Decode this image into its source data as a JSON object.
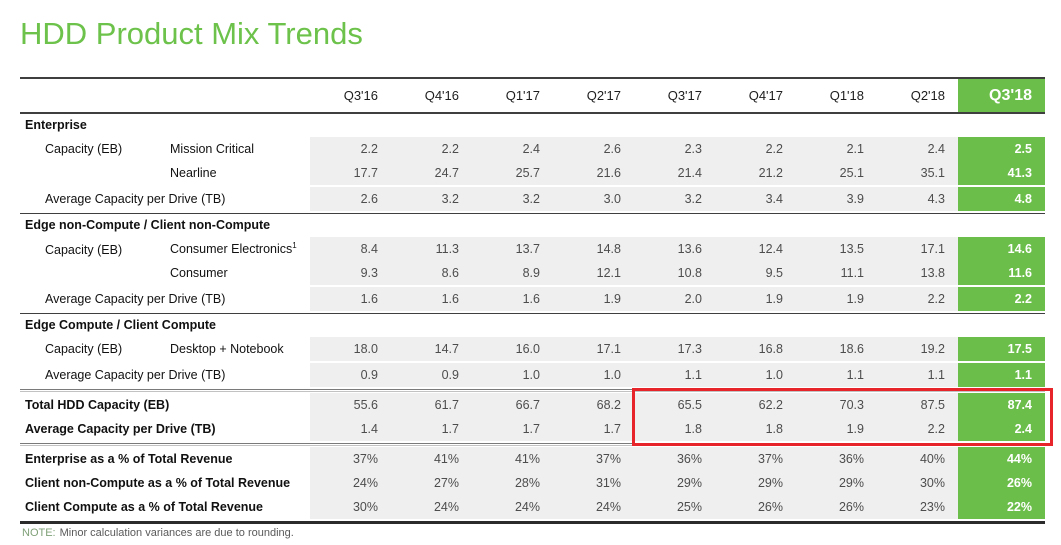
{
  "title": "HDD Product Mix Trends",
  "columns": {
    "labels": [
      "Q3'16",
      "Q4'16",
      "Q1'17",
      "Q2'17",
      "Q3'17",
      "Q4'17",
      "Q1'18",
      "Q2'18",
      "Q3'18"
    ]
  },
  "sections": [
    {
      "header": "Enterprise",
      "rows": [
        {
          "label1": "Capacity (EB)",
          "label2": "Mission Critical",
          "values": [
            "2.2",
            "2.2",
            "2.4",
            "2.6",
            "2.3",
            "2.2",
            "2.1",
            "2.4",
            "2.5"
          ]
        },
        {
          "label1": "",
          "label2": "Nearline",
          "values": [
            "17.7",
            "24.7",
            "25.7",
            "21.6",
            "21.4",
            "21.2",
            "25.1",
            "35.1",
            "41.3"
          ]
        }
      ],
      "avg": {
        "label": "Average Capacity per Drive (TB)",
        "values": [
          "2.6",
          "3.2",
          "3.2",
          "3.0",
          "3.2",
          "3.4",
          "3.9",
          "4.3",
          "4.8"
        ]
      }
    },
    {
      "header": "Edge non-Compute / Client non-Compute",
      "rows": [
        {
          "label1": "Capacity (EB)",
          "label2": "Consumer Electronics",
          "label2_sup": "1",
          "values": [
            "8.4",
            "11.3",
            "13.7",
            "14.8",
            "13.6",
            "12.4",
            "13.5",
            "17.1",
            "14.6"
          ]
        },
        {
          "label1": "",
          "label2": "Consumer",
          "values": [
            "9.3",
            "8.6",
            "8.9",
            "12.1",
            "10.8",
            "9.5",
            "11.1",
            "13.8",
            "11.6"
          ]
        }
      ],
      "avg": {
        "label": "Average Capacity per Drive (TB)",
        "values": [
          "1.6",
          "1.6",
          "1.6",
          "1.9",
          "2.0",
          "1.9",
          "1.9",
          "2.2",
          "2.2"
        ]
      }
    },
    {
      "header": "Edge Compute / Client Compute",
      "rows": [
        {
          "label1": "Capacity (EB)",
          "label2": "Desktop + Notebook",
          "values": [
            "18.0",
            "14.7",
            "16.0",
            "17.1",
            "17.3",
            "16.8",
            "18.6",
            "19.2",
            "17.5"
          ]
        }
      ],
      "avg": {
        "label": "Average Capacity per Drive (TB)",
        "values": [
          "0.9",
          "0.9",
          "1.0",
          "1.0",
          "1.1",
          "1.0",
          "1.1",
          "1.1",
          "1.1"
        ]
      }
    }
  ],
  "totals": {
    "rows": [
      {
        "label": "Total HDD Capacity (EB)",
        "values": [
          "55.6",
          "61.7",
          "66.7",
          "68.2",
          "65.5",
          "62.2",
          "70.3",
          "87.5",
          "87.4"
        ]
      },
      {
        "label": "Average Capacity per Drive (TB)",
        "values": [
          "1.4",
          "1.7",
          "1.7",
          "1.7",
          "1.8",
          "1.8",
          "1.9",
          "2.2",
          "2.4"
        ]
      }
    ]
  },
  "percents": {
    "rows": [
      {
        "label": "Enterprise as a % of Total Revenue",
        "values": [
          "37%",
          "41%",
          "41%",
          "37%",
          "36%",
          "37%",
          "36%",
          "40%",
          "44%"
        ]
      },
      {
        "label": "Client non-Compute as a % of Total Revenue",
        "values": [
          "24%",
          "27%",
          "28%",
          "31%",
          "29%",
          "29%",
          "29%",
          "30%",
          "26%"
        ]
      },
      {
        "label": "Client Compute as a % of Total Revenue",
        "values": [
          "30%",
          "24%",
          "24%",
          "24%",
          "25%",
          "26%",
          "26%",
          "23%",
          "22%"
        ]
      }
    ]
  },
  "note": {
    "label": "NOTE:",
    "text": "Minor calculation variances are due to rounding."
  },
  "colors": {
    "accent_green": "#6CBE4B",
    "title_green": "#6CC24A",
    "highlight_red": "#E8242B",
    "cell_gray": "#EFEFEF"
  }
}
